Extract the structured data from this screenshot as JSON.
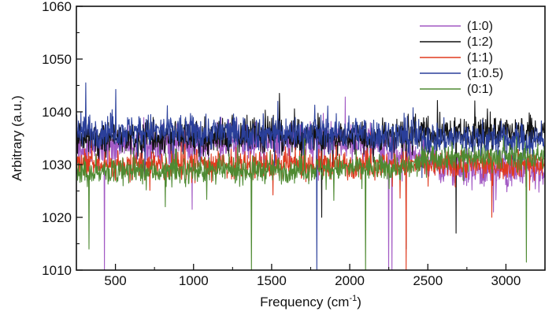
{
  "chart_data": {
    "type": "line",
    "title": "",
    "xlabel": "Frequency (cm",
    "xlabel_sup": "-1",
    "xlabel_close": ")",
    "ylabel": "Arbitrary (a.u.)",
    "xlim": [
      250,
      3250
    ],
    "ylim": [
      1010,
      1060
    ],
    "x_ticks": [
      500,
      1000,
      1500,
      2000,
      2500,
      3000
    ],
    "y_ticks": [
      1010,
      1020,
      1030,
      1040,
      1050,
      1060
    ],
    "grid": false,
    "legend_position": "top-right",
    "series": [
      {
        "name": "(1:0)",
        "color": "#a259c4",
        "mean": 1033,
        "noise": 2.4,
        "profile": [
          [
            250,
            1033
          ],
          [
            1000,
            1034
          ],
          [
            2000,
            1034.5
          ],
          [
            2400,
            1032
          ],
          [
            2600,
            1029
          ],
          [
            3250,
            1029
          ]
        ],
        "features": [
          [
            430,
            1010
          ],
          [
            990,
            1021.5
          ],
          [
            1800,
            1027
          ],
          [
            2250,
            1010
          ],
          [
            2270,
            1010
          ],
          [
            2920,
            1021
          ],
          [
            3180,
            1027
          ]
        ]
      },
      {
        "name": "(1:2)",
        "color": "#111111",
        "mean": 1036,
        "noise": 2.2,
        "profile": [
          [
            250,
            1035
          ],
          [
            1500,
            1035.5
          ],
          [
            2000,
            1035
          ],
          [
            2500,
            1036
          ],
          [
            3250,
            1036
          ]
        ],
        "features": [
          [
            1550,
            1043.5
          ],
          [
            1820,
            1020
          ],
          [
            2360,
            1014
          ],
          [
            2680,
            1017
          ],
          [
            2900,
            1040
          ]
        ]
      },
      {
        "name": "(1:1)",
        "color": "#e03a1e",
        "mean": 1030,
        "noise": 1.8,
        "profile": [
          [
            250,
            1030
          ],
          [
            3250,
            1030
          ]
        ],
        "features": [
          [
            2360,
            1010
          ],
          [
            2910,
            1020
          ]
        ]
      },
      {
        "name": "(1:0.5)",
        "color": "#2a3f9a",
        "mean": 1036,
        "noise": 2.3,
        "profile": [
          [
            250,
            1036.5
          ],
          [
            1500,
            1036
          ],
          [
            2000,
            1036
          ],
          [
            2500,
            1035
          ],
          [
            3250,
            1034.5
          ]
        ],
        "features": [
          [
            310,
            1045.5
          ],
          [
            1540,
            1042
          ],
          [
            1790,
            1010
          ]
        ]
      },
      {
        "name": "(0:1)",
        "color": "#4e8a32",
        "mean": 1029,
        "noise": 1.7,
        "profile": [
          [
            250,
            1028.5
          ],
          [
            1500,
            1029
          ],
          [
            2400,
            1029.5
          ],
          [
            2500,
            1031.5
          ],
          [
            3250,
            1031.5
          ]
        ],
        "features": [
          [
            330,
            1014
          ],
          [
            820,
            1022
          ],
          [
            1370,
            1010
          ],
          [
            2100,
            1010
          ],
          [
            3130,
            1011.5
          ]
        ]
      }
    ]
  }
}
